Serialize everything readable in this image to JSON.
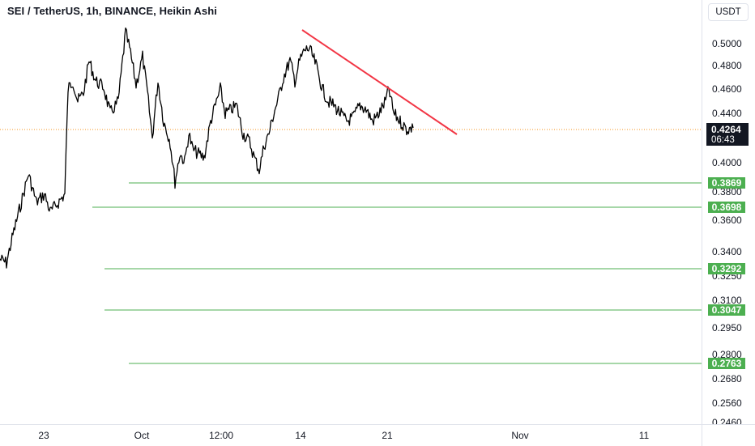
{
  "symbol_title": "SEI / TetherUS, 1h, BINANCE, Heikin Ashi",
  "currency_button": "USDT",
  "price_axis": {
    "ticks": [
      "0.5000",
      "0.4800",
      "0.4600",
      "0.4400",
      "0.4000",
      "0.3800",
      "0.3600",
      "0.3400",
      "0.3250",
      "0.3100",
      "0.2950",
      "0.2800",
      "0.2680",
      "0.2560",
      "0.2460"
    ]
  },
  "time_axis": {
    "labels": [
      "23",
      "Oct",
      "12:00",
      "14",
      "21",
      "Nov",
      "11"
    ]
  },
  "current_price": {
    "value": "0.4264",
    "countdown": "06:43"
  },
  "levels": [
    "0.3869",
    "0.3698",
    "0.3292",
    "0.3047",
    "0.2763"
  ],
  "colors": {
    "level_line": "#4caf50",
    "trendline": "#f23645",
    "price_line": "#f7931a",
    "candles": "#000000"
  }
}
